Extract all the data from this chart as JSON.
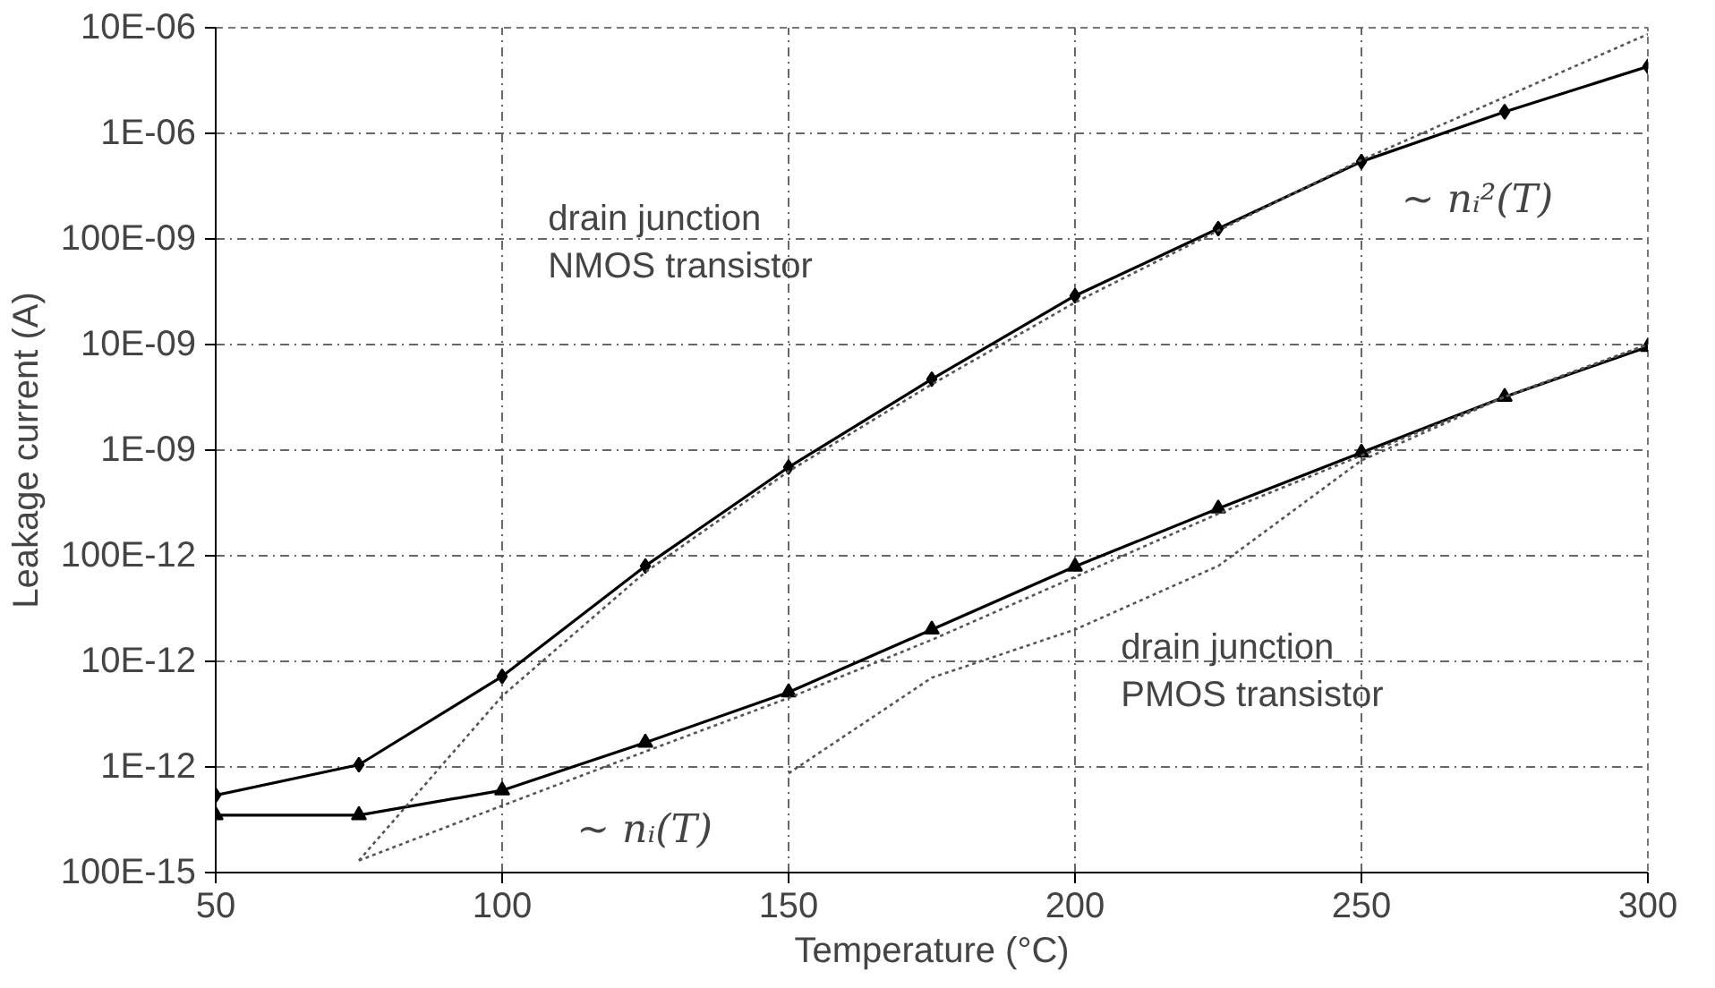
{
  "chart_data": {
    "type": "line",
    "xlabel": "Temperature (°C)",
    "ylabel": "Leakage current (A)",
    "log": "y",
    "grid": true,
    "marker": "diamond",
    "line_style": "solid",
    "x": [
      50,
      75,
      100,
      125,
      150,
      175,
      200,
      225,
      250,
      275,
      300
    ],
    "xlim": [
      50,
      300
    ],
    "xticks": [
      50,
      100,
      150,
      200,
      250,
      300
    ],
    "ylim": [
      1e-13,
      1e-05
    ],
    "yticks": [
      {
        "value": 1e-13,
        "label": "100E-15"
      },
      {
        "value": 1e-12,
        "label": "1E-12"
      },
      {
        "value": 1e-11,
        "label": "10E-12"
      },
      {
        "value": 1e-10,
        "label": "100E-12"
      },
      {
        "value": 1e-09,
        "label": "1E-09"
      },
      {
        "value": 1e-08,
        "label": "10E-09"
      },
      {
        "value": 1e-07,
        "label": "100E-09"
      },
      {
        "value": 1e-06,
        "label": "1E-06"
      },
      {
        "value": 1e-05,
        "label": "10E-06"
      }
    ],
    "series": [
      {
        "color": "#000000",
        "values": [
          5.4e-13,
          1.05e-12,
          7.2e-12,
          8e-11,
          6.9e-10,
          4.7e-09,
          2.9e-08,
          1.25e-07,
          5.4e-07,
          1.6e-06,
          4.3e-06
        ]
      },
      {
        "color": "#000000",
        "marker": "triangle",
        "values": [
          3.5e-13,
          3.5e-13,
          6e-13,
          1.7e-12,
          5.1e-12,
          2e-11,
          7.9e-11,
          2.8e-10,
          9.5e-10,
          3.2e-09,
          9.5e-09
        ]
      },
      {
        "type": "line",
        "color": "#555555",
        "marker": "none",
        "line_style": "dotted",
        "x": [
          75,
          100,
          125,
          150,
          175,
          200,
          225,
          250,
          275,
          300
        ],
        "values": [
          1.3e-13,
          4.7e-12,
          7e-11,
          6.3e-10,
          4.2e-09,
          2.5e-08,
          1.2e-07,
          5.6e-07,
          2.2e-06,
          8.7e-06
        ]
      },
      {
        "type": "line",
        "color": "#555555",
        "marker": "none",
        "line_style": "dotted",
        "x": [
          75,
          100,
          125,
          150,
          175,
          200,
          225,
          250,
          275,
          300
        ],
        "values": [
          1.3e-13,
          4.3e-13,
          1.4e-12,
          4.5e-12,
          1.6e-11,
          6.3e-11,
          2.5e-10,
          8.9e-10,
          3.2e-09,
          1e-08
        ]
      },
      {
        "type": "line",
        "color": "#555555",
        "marker": "none",
        "line_style": "dotted",
        "x": [
          150,
          175,
          200,
          225,
          250,
          275,
          300
        ],
        "values": [
          8.7e-13,
          7e-12,
          2e-11,
          8e-11,
          8e-10,
          3.2e-09,
          1e-08
        ]
      }
    ],
    "annotations": [
      "drain junction\nNMOS transistor",
      "~ nᵢ²(T)",
      "drain junction\nPMOS transistor",
      "~ nᵢ(T)"
    ]
  }
}
